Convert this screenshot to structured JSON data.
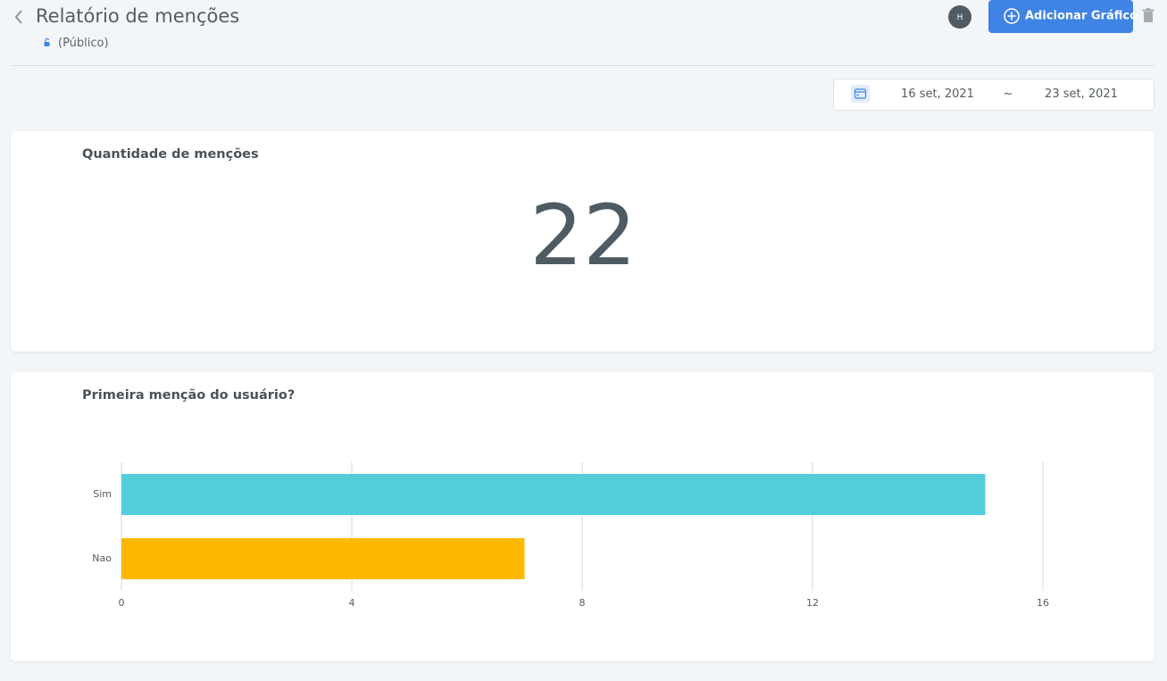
{
  "header": {
    "title": "Relatório de menções",
    "visibility": "(Público)",
    "avatar": "H",
    "add_button": "Adicionar Gráfico"
  },
  "date_range": {
    "start": "16 set, 2021",
    "separator": "~",
    "end": "23 set, 2021"
  },
  "metric": {
    "title": "Quantidade de menções",
    "value": 22
  },
  "chart_data": {
    "type": "bar",
    "orientation": "horizontal",
    "title": "Primeira menção do usuário?",
    "categories": [
      "Sim",
      "Nao"
    ],
    "values": [
      15,
      7
    ],
    "colors": [
      "#52cedb",
      "#ffb800"
    ],
    "xlim": [
      0,
      16
    ],
    "xticks": [
      0,
      4,
      8,
      12,
      16
    ],
    "grid": true
  }
}
